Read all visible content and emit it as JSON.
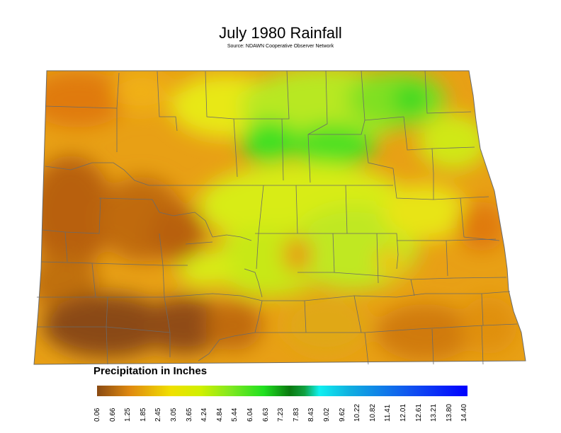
{
  "map": {
    "title": "July 1980 Rainfall",
    "source": "Source: NDAWN Cooperative Observer Network",
    "legend_title": "Precipitation in Inches",
    "legend_ticks": [
      "0.06",
      "0.66",
      "1.25",
      "1.85",
      "2.45",
      "3.05",
      "3.65",
      "4.24",
      "4.84",
      "5.44",
      "6.04",
      "6.63",
      "7.23",
      "7.83",
      "8.43",
      "9.02",
      "9.62",
      "10.22",
      "10.82",
      "11.41",
      "12.01",
      "12.61",
      "13.21",
      "13.80",
      "14.40"
    ],
    "colors": {
      "dark_brown": "#8a4a12",
      "orange": "#e88a10",
      "yellow": "#eef000",
      "light_green": "#9ee820",
      "green": "#28e020",
      "dark_green": "#108a18",
      "cyan": "#10f0f0",
      "blue": "#1060f0",
      "deep_blue": "#0000ff",
      "boundary": "#6a6a6a"
    }
  }
}
